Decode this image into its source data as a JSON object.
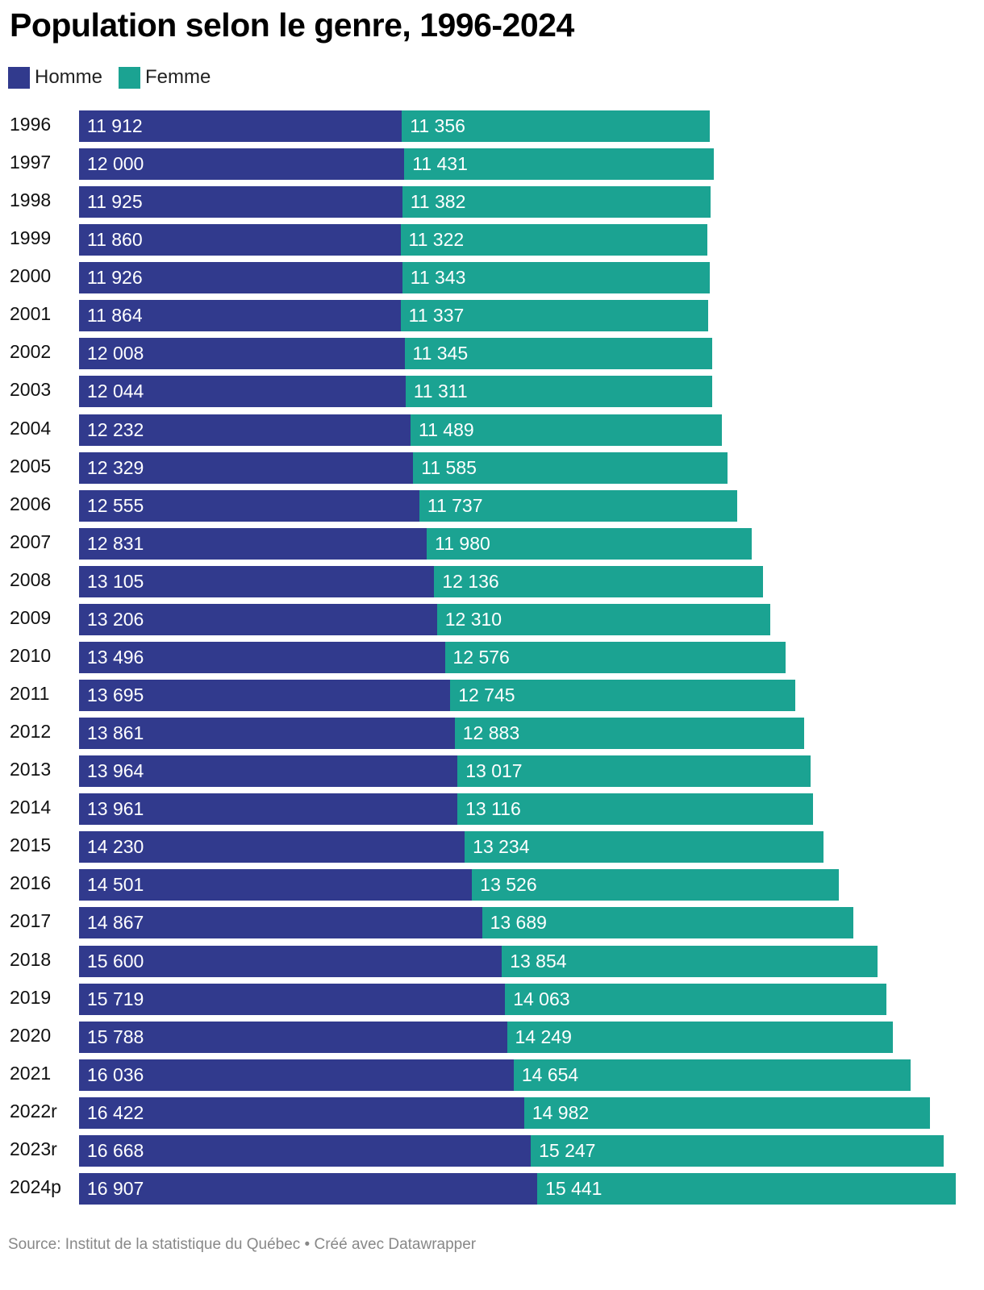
{
  "title": "Population selon le genre, 1996-2024",
  "source": "Source: Institut de la statistique du Québec • Créé avec Datawrapper",
  "colors": {
    "homme": "#313a8d",
    "femme": "#1ba392"
  },
  "legend": [
    {
      "label": "Homme",
      "color": "#313a8d"
    },
    {
      "label": "Femme",
      "color": "#1ba392"
    }
  ],
  "chart_data": {
    "type": "bar",
    "orientation": "horizontal",
    "stacked": true,
    "title": "Population selon le genre, 1996-2024",
    "categories": [
      "1996",
      "1997",
      "1998",
      "1999",
      "2000",
      "2001",
      "2002",
      "2003",
      "2004",
      "2005",
      "2006",
      "2007",
      "2008",
      "2009",
      "2010",
      "2011",
      "2012",
      "2013",
      "2014",
      "2015",
      "2016",
      "2017",
      "2018",
      "2019",
      "2020",
      "2021",
      "2022r",
      "2023r",
      "2024p"
    ],
    "series": [
      {
        "name": "Homme",
        "values": [
          11912,
          12000,
          11925,
          11860,
          11926,
          11864,
          12008,
          12044,
          12232,
          12329,
          12555,
          12831,
          13105,
          13206,
          13496,
          13695,
          13861,
          13964,
          13961,
          14230,
          14501,
          14867,
          15600,
          15719,
          15788,
          16036,
          16422,
          16668,
          16907
        ],
        "labels": [
          "11 912",
          "12 000",
          "11 925",
          "11 860",
          "11 926",
          "11 864",
          "12 008",
          "12 044",
          "12 232",
          "12 329",
          "12 555",
          "12 831",
          "13 105",
          "13 206",
          "13 496",
          "13 695",
          "13 861",
          "13 964",
          "13 961",
          "14 230",
          "14 501",
          "14 867",
          "15 600",
          "15 719",
          "15 788",
          "16 036",
          "16 422",
          "16 668",
          "16 907"
        ]
      },
      {
        "name": "Femme",
        "values": [
          11356,
          11431,
          11382,
          11322,
          11343,
          11337,
          11345,
          11311,
          11489,
          11585,
          11737,
          11980,
          12136,
          12310,
          12576,
          12745,
          12883,
          13017,
          13116,
          13234,
          13526,
          13689,
          13854,
          14063,
          14249,
          14654,
          14982,
          15247,
          15441
        ],
        "labels": [
          "11 356",
          "11 431",
          "11 382",
          "11 322",
          "11 343",
          "11 337",
          "11 345",
          "11 311",
          "11 489",
          "11 585",
          "11 737",
          "11 980",
          "12 136",
          "12 310",
          "12 576",
          "12 745",
          "12 883",
          "13 017",
          "13 116",
          "13 234",
          "13 526",
          "13 689",
          "13 854",
          "14 063",
          "14 249",
          "14 654",
          "14 982",
          "15 247",
          "15 441"
        ]
      }
    ],
    "legend_position": "top-left",
    "grid": false,
    "xlim": [
      0,
      32348
    ]
  }
}
